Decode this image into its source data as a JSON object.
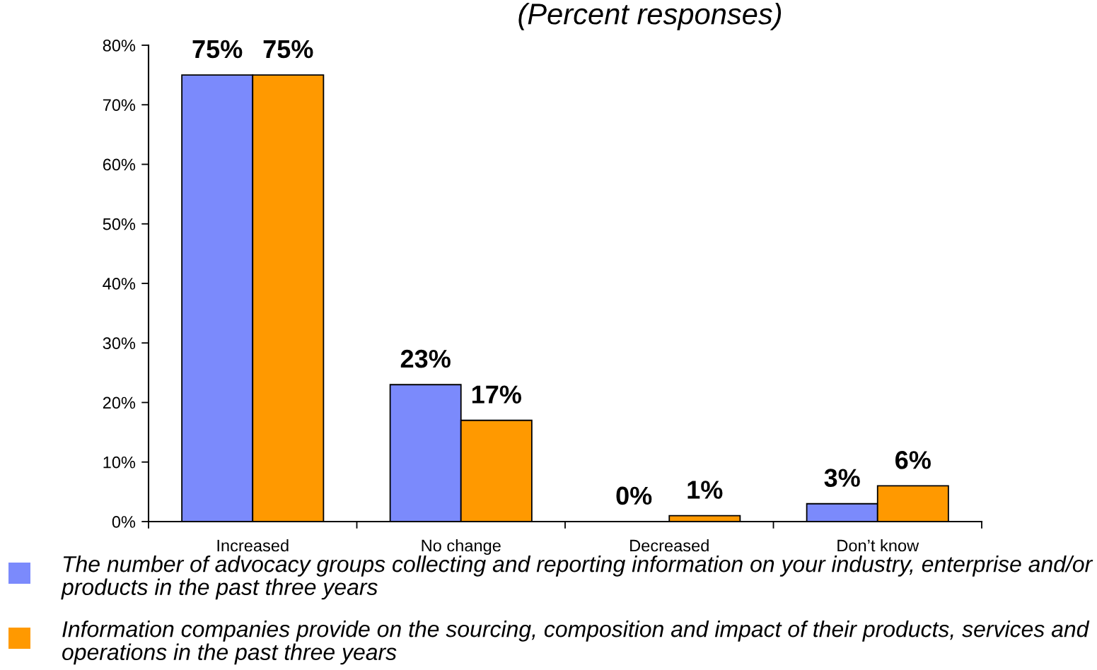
{
  "chart_data": {
    "type": "bar",
    "title": "(Percent responses)",
    "categories": [
      "Increased",
      "No change",
      "Decreased",
      "Don’t know"
    ],
    "series": [
      {
        "name": "The number of advocacy groups collecting and reporting information on your industry, enterprise and/or products in the past three years",
        "color": "#7b8afc",
        "values": [
          75,
          23,
          0,
          3
        ],
        "value_labels": [
          "75%",
          "23%",
          "0%",
          "3%"
        ]
      },
      {
        "name": "Information companies provide on the sourcing, composition and impact of their products, services and operations in the past three years",
        "color": "#ff9900",
        "values": [
          75,
          17,
          1,
          6
        ],
        "value_labels": [
          "75%",
          "17%",
          "1%",
          "6%"
        ]
      }
    ],
    "ylim": [
      0,
      80
    ],
    "yticks": [
      {
        "value": 0,
        "label": "0%"
      },
      {
        "value": 10,
        "label": "10%"
      },
      {
        "value": 20,
        "label": "20%"
      },
      {
        "value": 30,
        "label": "30%"
      },
      {
        "value": 40,
        "label": "40%"
      },
      {
        "value": 50,
        "label": "50%"
      },
      {
        "value": 60,
        "label": "60%"
      },
      {
        "value": 70,
        "label": "70%"
      },
      {
        "value": 80,
        "label": "80%"
      }
    ],
    "legend": "bottom"
  }
}
